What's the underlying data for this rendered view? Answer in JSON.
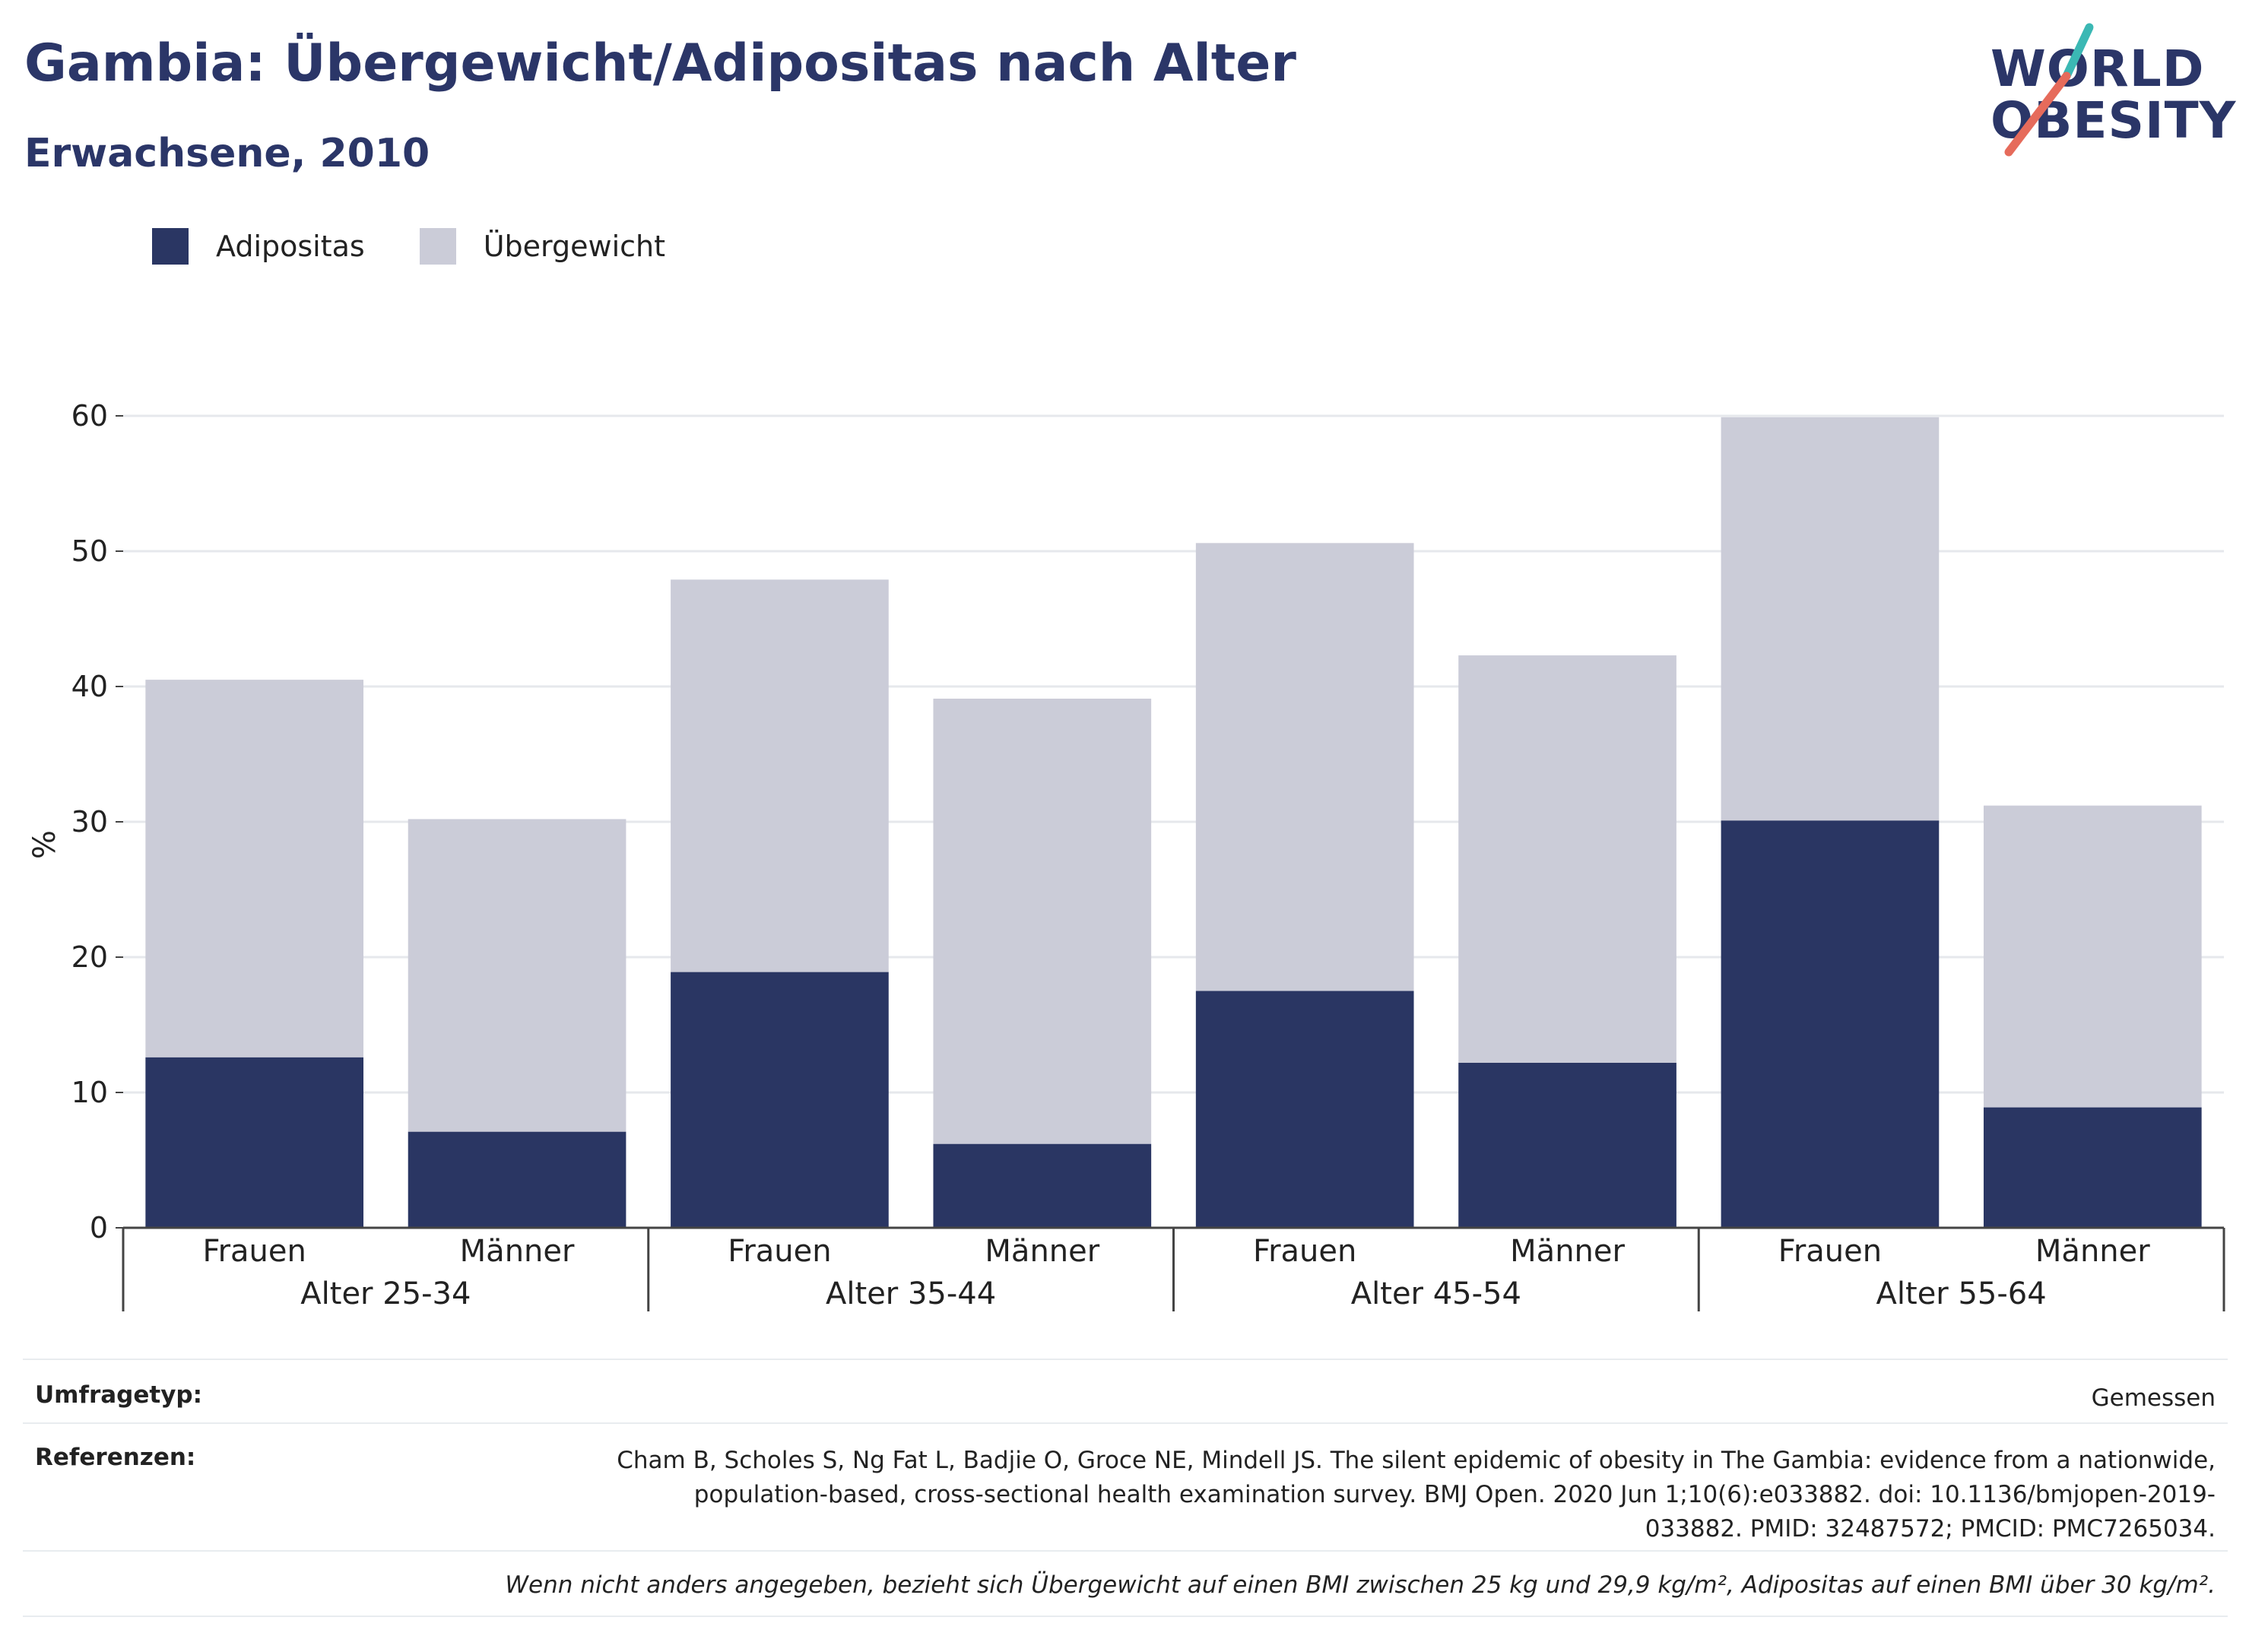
{
  "header": {
    "title": "Gambia: Übergewicht/Adipositas nach Alter",
    "subtitle": "Erwachsene, 2010"
  },
  "logo": {
    "line1": "WORLD",
    "line2": "OBESITY"
  },
  "legend": [
    {
      "label": "Adipositas",
      "color": "#2a3663"
    },
    {
      "label": "Übergewicht",
      "color": "#cbccd8"
    }
  ],
  "chart_data": {
    "type": "bar",
    "stacked": true,
    "ylabel": "%",
    "ylim": [
      0,
      60
    ],
    "yticks": [
      "0",
      "10",
      "20",
      "30",
      "40",
      "50",
      "60"
    ],
    "grid": true,
    "legend_position": "top-left",
    "groups": [
      "Alter 25-34",
      "Alter 35-44",
      "Alter 45-54",
      "Alter 55-64"
    ],
    "categories": [
      "Frauen",
      "Männer",
      "Frauen",
      "Männer",
      "Frauen",
      "Männer",
      "Frauen",
      "Männer"
    ],
    "series": [
      {
        "name": "Adipositas",
        "color": "#2a3663",
        "values": [
          12.6,
          7.1,
          18.9,
          6.2,
          17.5,
          12.2,
          30.1,
          8.9
        ]
      },
      {
        "name": "Übergewicht",
        "color": "#cbccd8",
        "values": [
          27.9,
          23.1,
          29.0,
          32.9,
          33.1,
          30.1,
          29.8,
          22.3
        ]
      }
    ]
  },
  "footer": {
    "survey_label": "Umfragetyp:",
    "survey_value": "Gemessen",
    "ref_label": "Referenzen:",
    "ref_line1": "Cham B, Scholes S, Ng Fat L, Badjie O, Groce NE, Mindell JS. The silent epidemic of obesity in The Gambia: evidence from a nationwide,",
    "ref_line2": "population-based, cross-sectional health examination survey. BMJ Open. 2020 Jun 1;10(6):e033882. doi: 10.1136/bmjopen-2019-",
    "ref_line3": "033882. PMID: 32487572; PMCID: PMC7265034.",
    "note": "Wenn nicht anders angegeben, bezieht sich Übergewicht auf einen BMI zwischen 25 kg und 29,9 kg/m², Adipositas auf einen BMI über 30 kg/m²."
  }
}
